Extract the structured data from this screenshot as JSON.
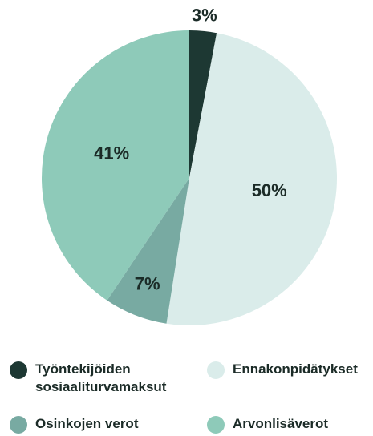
{
  "chart_data": {
    "type": "pie",
    "categories": [
      "Työntekijöiden sosiaaliturvamaksut",
      "Ennakonpidätykset",
      "Osinkojen verot",
      "Arvonlisäverot"
    ],
    "values": [
      3,
      50,
      7,
      41
    ],
    "value_labels": [
      "3%",
      "50%",
      "7%",
      "41%"
    ],
    "colors": [
      "#1d3833",
      "#daecea",
      "#78aaa2",
      "#8ecab9"
    ]
  }
}
